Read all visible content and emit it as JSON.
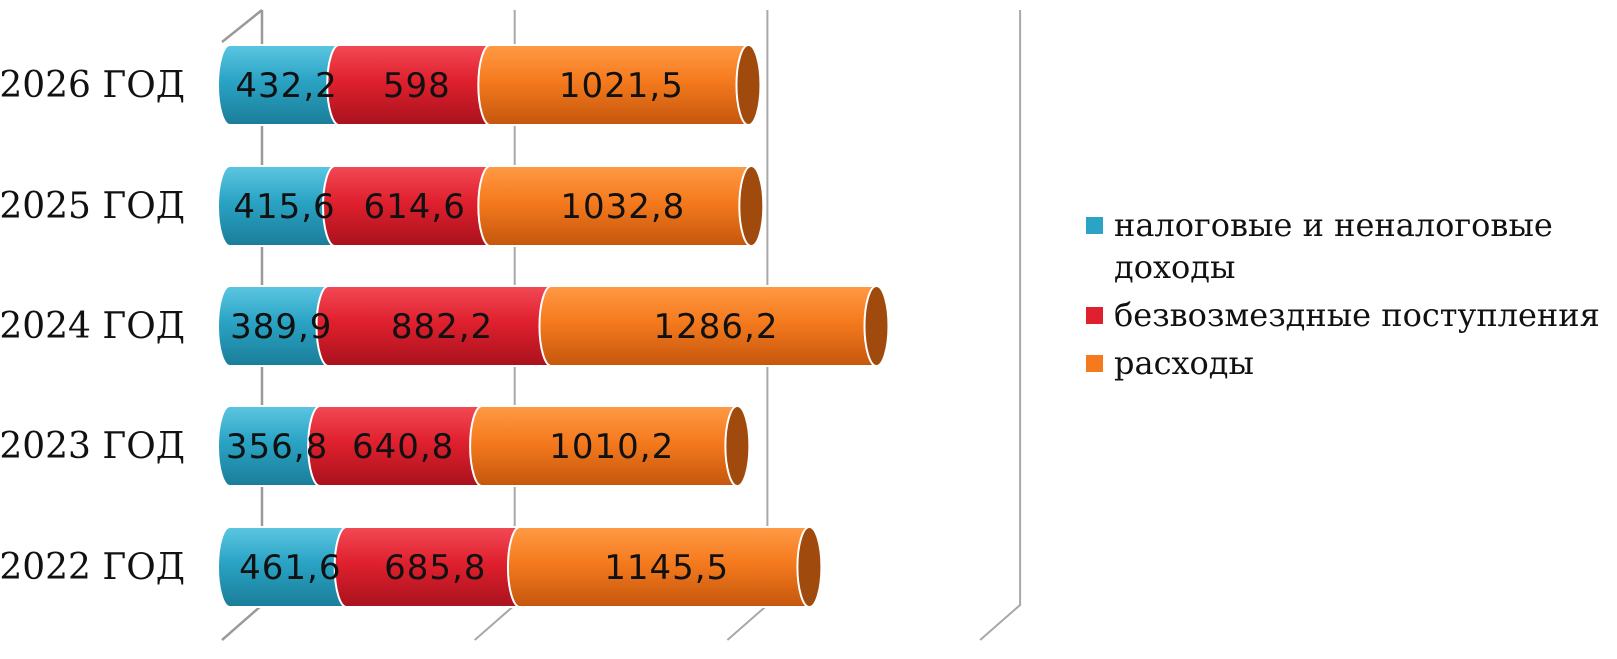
{
  "chart_data": {
    "type": "bar",
    "orientation": "horizontal",
    "stacked": true,
    "categories": [
      "2022 ГОД",
      "2023 ГОД",
      "2024 ГОД",
      "2025 ГОД",
      "2026 ГОД"
    ],
    "series": [
      {
        "name": "налоговые и неналоговые доходы",
        "values": [
          461.6,
          356.8,
          389.9,
          415.6,
          432.2
        ],
        "labels": [
          "461,6",
          "356,8",
          "389,9",
          "415,6",
          "432,2"
        ],
        "color": "#2aa3c4"
      },
      {
        "name": "безвозмездные поступления",
        "values": [
          685.8,
          640.8,
          882.2,
          614.6,
          598
        ],
        "labels": [
          "685,8",
          "640,8",
          "882,2",
          "614,6",
          "598"
        ],
        "color": "#e0202e"
      },
      {
        "name": "расходы",
        "values": [
          1145.5,
          1010.2,
          1286.2,
          1032.8,
          1021.5
        ],
        "labels": [
          "1145,5",
          "1010,2",
          "1286,2",
          "1032,8",
          "1021,5"
        ],
        "color": "#f57a1e"
      }
    ],
    "xlim": [
      0,
      3000
    ],
    "grid": true,
    "legend_position": "right"
  }
}
